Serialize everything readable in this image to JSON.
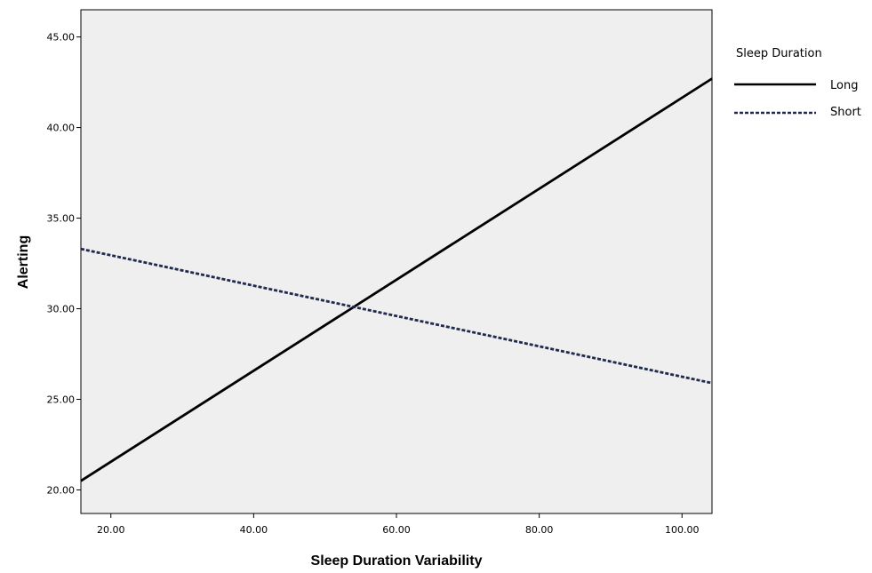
{
  "chart_data": {
    "type": "line",
    "xlabel": "Sleep Duration Variability",
    "ylabel": "Alerting",
    "xlim": [
      15.8,
      104.2
    ],
    "ylim": [
      18.7,
      46.5
    ],
    "x_ticks": [
      20,
      40,
      60,
      80,
      100
    ],
    "y_ticks": [
      20,
      25,
      30,
      35,
      40,
      45
    ],
    "x_tick_labels": [
      "20.00",
      "40.00",
      "60.00",
      "80.00",
      "100.00"
    ],
    "y_tick_labels": [
      "20.00",
      "25.00",
      "30.00",
      "35.00",
      "40.00",
      "45.00"
    ],
    "grid": false,
    "plot_background": "#efefef",
    "legend": {
      "title": "Sleep Duration",
      "placement": "right"
    },
    "series": [
      {
        "name": "Long",
        "line_style": "solid",
        "color": "#000000",
        "x": [
          15.8,
          104.2
        ],
        "y": [
          20.5,
          42.7
        ]
      },
      {
        "name": "Short",
        "line_style": "dashed",
        "color": "#1f2a4d",
        "x": [
          15.8,
          104.2
        ],
        "y": [
          33.3,
          25.9
        ]
      }
    ]
  }
}
